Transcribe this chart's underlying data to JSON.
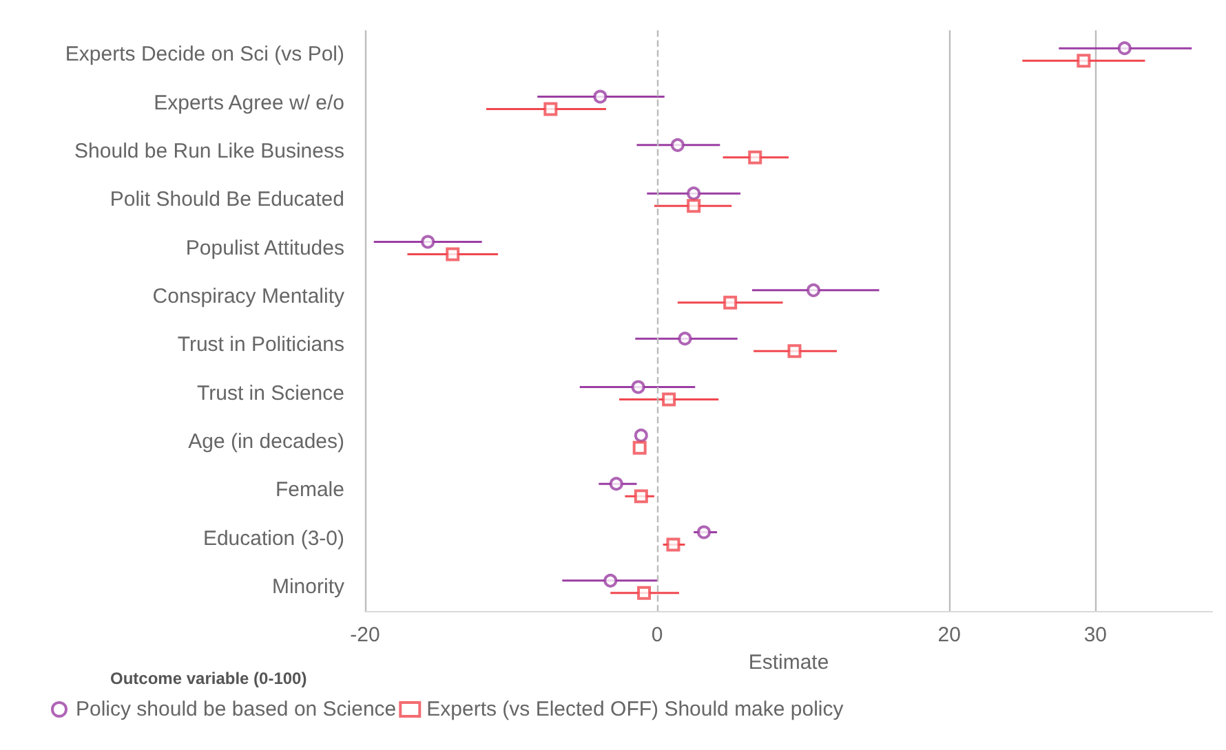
{
  "chart_data": {
    "type": "scatter",
    "orientation": "horizontal",
    "xlabel": "Estimate",
    "legend_title": "Outcome variable (0-100)",
    "categories": [
      "Experts Decide on Sci (vs Pol)",
      "Experts Agree w/ e/o",
      "Should be Run Like Business",
      "Polit Should Be Educated",
      "Populist Attitudes",
      "Conspiracy Mentality",
      "Trust in Politicians",
      "Trust in Science",
      "Age (in decades)",
      "Female",
      "Education (3-0)",
      "Minority"
    ],
    "series": [
      {
        "name": "Policy should be based on Science",
        "color": "#9b3ea3",
        "marker": "circle",
        "values": [
          32.0,
          -3.9,
          1.4,
          2.5,
          -15.7,
          10.7,
          1.9,
          -1.3,
          -1.1,
          -2.8,
          3.2,
          -3.2
        ],
        "errors": [
          [
            27.5,
            36.6
          ],
          [
            -8.2,
            0.5
          ],
          [
            -1.4,
            4.3
          ],
          [
            -0.7,
            5.7
          ],
          [
            -19.4,
            -12.0
          ],
          [
            6.5,
            15.2
          ],
          [
            -1.5,
            5.5
          ],
          [
            -5.3,
            2.6
          ],
          null,
          [
            -4.0,
            -1.4
          ],
          [
            2.5,
            4.1
          ],
          [
            -6.5,
            0
          ]
        ]
      },
      {
        "name": "Experts (vs Elected OFF) Should make policy",
        "color": "#f0474f",
        "marker": "square",
        "values": [
          29.2,
          -7.3,
          6.7,
          2.5,
          -14.0,
          5.0,
          9.4,
          0.8,
          -1.2,
          -1.1,
          1.1,
          -0.9
        ],
        "errors": [
          [
            25.0,
            33.4
          ],
          [
            -11.7,
            -3.5
          ],
          [
            4.5,
            9.0
          ],
          [
            -0.2,
            5.1
          ],
          [
            -17.1,
            -10.9
          ],
          [
            1.4,
            8.6
          ],
          [
            6.6,
            12.3
          ],
          [
            -2.6,
            4.2
          ],
          null,
          [
            -2.2,
            -0.2
          ],
          [
            0.4,
            1.9
          ],
          [
            -3.2,
            1.5
          ]
        ]
      }
    ],
    "xlim": [
      -20,
      38
    ],
    "xticks": [
      -20,
      0,
      20,
      30
    ],
    "grid": "x",
    "legend": "bottom left",
    "ref_lines": [
      {
        "axis": "x",
        "value": 0,
        "line_style": "dashed",
        "color": "#bbbbbb"
      }
    ]
  }
}
